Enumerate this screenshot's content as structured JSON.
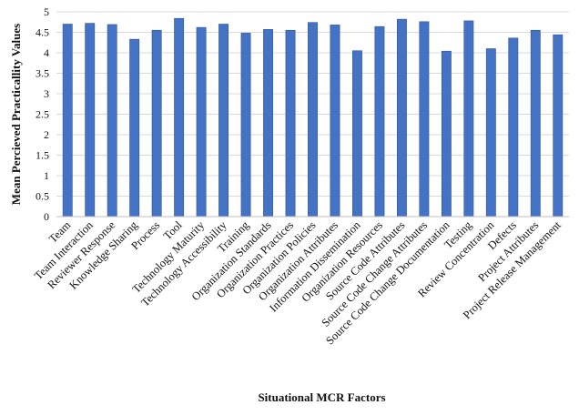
{
  "chart_data": {
    "type": "bar",
    "title": "",
    "xlabel": "Situational MCR Factors",
    "ylabel": "Mean Percieved Practicallity Values",
    "ylim": [
      0,
      5
    ],
    "yticks": [
      0,
      0.5,
      1,
      1.5,
      2,
      2.5,
      3,
      3.5,
      4,
      4.5,
      5
    ],
    "grid": true,
    "bar_color": "#4472C4",
    "categories": [
      "Team",
      "Team Interaction",
      "Reviewer Response",
      "Knowledge Sharing",
      "Process",
      "Tool",
      "Technology Maturity",
      "Technology Accessibility",
      "Training",
      "Organization Standards",
      "Organization Practices",
      "Organization Policies",
      "Organization Attributes",
      "Information Dissemination",
      "Organization Resources",
      "Source Code Attributes",
      "Source Code Change Attributes",
      "Source Code Change Documentation",
      "Testing",
      "Review Concentration",
      "Defects",
      "Project Attributes",
      "Project Release Management"
    ],
    "values": [
      4.7,
      4.72,
      4.69,
      4.33,
      4.55,
      4.84,
      4.62,
      4.7,
      4.48,
      4.57,
      4.55,
      4.74,
      4.68,
      4.05,
      4.64,
      4.82,
      4.76,
      4.04,
      4.78,
      4.1,
      4.36,
      4.55,
      4.44
    ]
  }
}
